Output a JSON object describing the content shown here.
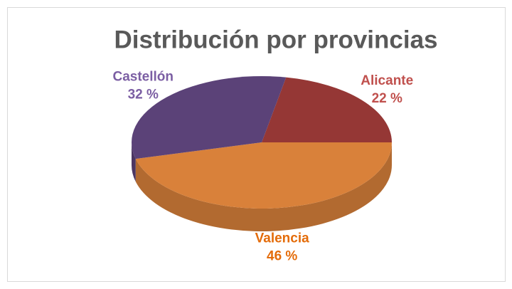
{
  "chart_data": {
    "type": "pie",
    "title": "Distribución por provincias",
    "categories": [
      "Alicante",
      "Valencia",
      "Castellón"
    ],
    "values": [
      22,
      46,
      32
    ],
    "value_labels": [
      "22 %",
      "46 %",
      "32 %"
    ],
    "colors": [
      "#953735",
      "#d9813a",
      "#5b4278"
    ],
    "label_colors": [
      "#c0504d",
      "#e46c0a",
      "#7b5ea3"
    ]
  }
}
